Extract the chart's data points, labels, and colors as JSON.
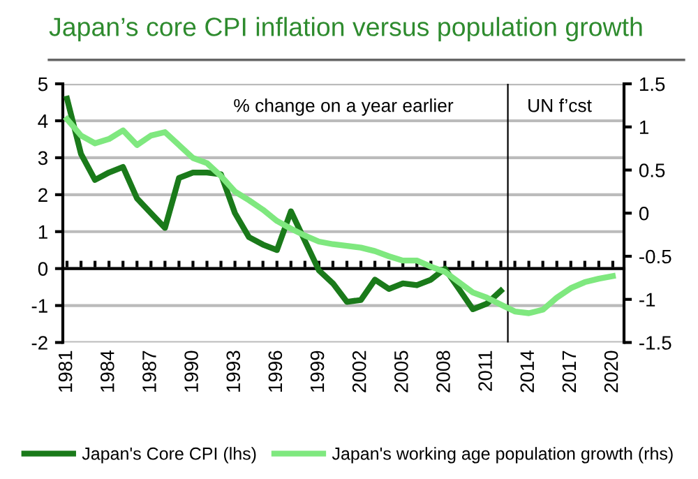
{
  "chart_data": {
    "type": "line",
    "title": "Japan’s core CPI inflation versus population growth",
    "x": [
      1981,
      1982,
      1983,
      1984,
      1985,
      1986,
      1987,
      1988,
      1989,
      1990,
      1991,
      1992,
      1993,
      1994,
      1995,
      1996,
      1997,
      1998,
      1999,
      2000,
      2001,
      2002,
      2003,
      2004,
      2005,
      2006,
      2007,
      2008,
      2009,
      2010,
      2011,
      2012,
      2013,
      2014,
      2015,
      2016,
      2017,
      2018,
      2019,
      2020
    ],
    "series": [
      {
        "name": "Japan's Core CPI (lhs)",
        "color": "#1a7a1a",
        "values": [
          4.6,
          3.1,
          2.4,
          2.6,
          2.75,
          1.9,
          1.5,
          1.1,
          2.45,
          2.6,
          2.6,
          2.55,
          1.5,
          0.85,
          0.65,
          0.5,
          1.55,
          0.75,
          -0.05,
          -0.4,
          -0.9,
          -0.85,
          -0.3,
          -0.55,
          -0.4,
          -0.45,
          -0.3,
          0.0,
          -0.55,
          -1.1,
          -0.95,
          -0.6,
          null,
          null,
          null,
          null,
          null,
          null,
          null,
          null
        ]
      },
      {
        "name": "Japan's working age population growth (rhs)",
        "color": "#7fe87f",
        "axis": "y2",
        "values": [
          1.09,
          0.9,
          0.81,
          0.86,
          0.96,
          0.79,
          0.9,
          0.94,
          0.79,
          0.64,
          0.58,
          0.43,
          0.25,
          0.15,
          0.04,
          -0.09,
          -0.18,
          -0.26,
          -0.33,
          -0.36,
          -0.38,
          -0.4,
          -0.44,
          -0.5,
          -0.55,
          -0.55,
          -0.62,
          -0.68,
          -0.8,
          -0.92,
          -0.98,
          -1.06,
          -1.14,
          -1.16,
          -1.12,
          -0.98,
          -0.87,
          -0.8,
          -0.76,
          -0.73
        ]
      }
    ],
    "xlim": [
      1980.7,
      2020.8
    ],
    "xticks": [
      1981,
      {
        "value": 1982,
        "label": null
      },
      {
        "value": 1983,
        "label": null
      },
      1984,
      {
        "value": 1985,
        "label": null
      },
      {
        "value": 1986,
        "label": null
      },
      1987,
      {
        "value": 1988,
        "label": null
      },
      {
        "value": 1989,
        "label": null
      },
      1990,
      {
        "value": 1991,
        "label": null
      },
      {
        "value": 1992,
        "label": null
      },
      1993,
      {
        "value": 1994,
        "label": null
      },
      {
        "value": 1995,
        "label": null
      },
      1996,
      {
        "value": 1997,
        "label": null
      },
      {
        "value": 1998,
        "label": null
      },
      1999,
      {
        "value": 2000,
        "label": null
      },
      {
        "value": 2001,
        "label": null
      },
      2002,
      {
        "value": 2003,
        "label": null
      },
      {
        "value": 2004,
        "label": null
      },
      2005,
      {
        "value": 2006,
        "label": null
      },
      {
        "value": 2007,
        "label": null
      },
      2008,
      {
        "value": 2009,
        "label": null
      },
      {
        "value": 2010,
        "label": null
      },
      2011,
      {
        "value": 2012,
        "label": null
      },
      {
        "value": 2013,
        "label": null
      },
      2014,
      {
        "value": 2015,
        "label": null
      },
      {
        "value": 2016,
        "label": null
      },
      2017,
      {
        "value": 2018,
        "label": null
      },
      {
        "value": 2019,
        "label": null
      },
      2020
    ],
    "ylim": [
      -2,
      5
    ],
    "yticks": [
      -2,
      -1,
      0,
      1,
      2,
      3,
      4,
      5
    ],
    "y2lim": [
      -1.5,
      1.5
    ],
    "y2ticks": [
      -1.5,
      -1,
      -0.5,
      0,
      0.5,
      1,
      1.5
    ],
    "ref_lines": [
      {
        "axis": "x",
        "value": 2012.5,
        "color": "#000000"
      }
    ],
    "annotations": [
      "% change on a year earlier",
      "UN f’cst"
    ],
    "grid": "y",
    "legend": "bottom",
    "marker": "none",
    "line_style": "solid"
  }
}
